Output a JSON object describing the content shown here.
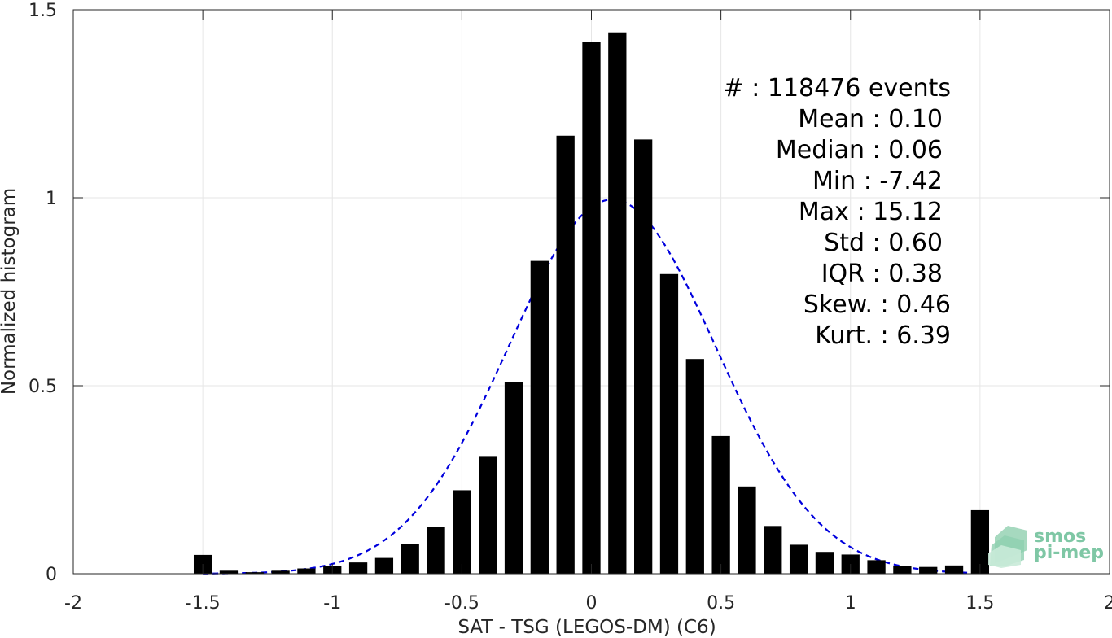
{
  "chart_data": {
    "type": "bar",
    "xlabel": "SAT - TSG (LEGOS-DM) (C6)",
    "ylabel": "Normalized histogram",
    "xlim": [
      -2,
      2
    ],
    "ylim": [
      0,
      1.5
    ],
    "grid": true,
    "x_ticks": [
      {
        "value": -2,
        "label": "-2"
      },
      {
        "value": -1.5,
        "label": "-1.5"
      },
      {
        "value": -1,
        "label": "-1"
      },
      {
        "value": -0.5,
        "label": "-0.5"
      },
      {
        "value": 0,
        "label": "0"
      },
      {
        "value": 0.5,
        "label": "0.5"
      },
      {
        "value": 1,
        "label": "1"
      },
      {
        "value": 1.5,
        "label": "1.5"
      },
      {
        "value": 2,
        "label": "2"
      }
    ],
    "y_ticks": [
      {
        "value": 0,
        "label": "0"
      },
      {
        "value": 0.5,
        "label": "0.5"
      },
      {
        "value": 1,
        "label": "1"
      },
      {
        "value": 1.5,
        "label": "1.5"
      }
    ],
    "bins": {
      "x": [
        -1.5,
        -1.4,
        -1.3,
        -1.2,
        -1.1,
        -1.0,
        -0.9,
        -0.8,
        -0.7,
        -0.6,
        -0.5,
        -0.4,
        -0.3,
        -0.2,
        -0.1,
        0.0,
        0.1,
        0.2,
        0.3,
        0.4,
        0.5,
        0.6,
        0.7,
        0.8,
        0.9,
        1.0,
        1.1,
        1.2,
        1.3,
        1.4,
        1.5
      ],
      "values": [
        0.05,
        0.008,
        0.004,
        0.008,
        0.014,
        0.02,
        0.03,
        0.042,
        0.078,
        0.125,
        0.222,
        0.313,
        0.51,
        0.832,
        1.165,
        1.414,
        1.44,
        1.155,
        0.797,
        0.571,
        0.366,
        0.232,
        0.127,
        0.077,
        0.058,
        0.051,
        0.036,
        0.02,
        0.018,
        0.022,
        0.169
      ],
      "width": 0.07,
      "color": "#000000"
    },
    "fit_curve": {
      "style": "dashed",
      "color": "#0000dd",
      "mean": 0.08,
      "std": 0.4,
      "peak": 0.995,
      "x_range": [
        -1.5,
        1.5
      ]
    },
    "annotations": [
      {
        "label": "#  :",
        "value": "118476 events"
      },
      {
        "label": "Mean :",
        "value": "0.10"
      },
      {
        "label": "Median :",
        "value": "0.06"
      },
      {
        "label": "Min :",
        "value": "-7.42"
      },
      {
        "label": "Max :",
        "value": "15.12"
      },
      {
        "label": "Std :",
        "value": "0.60"
      },
      {
        "label": "IQR :",
        "value": "0.38"
      },
      {
        "label": "Skew. :",
        "value": "0.46"
      },
      {
        "label": "Kurt. :",
        "value": "6.39"
      }
    ]
  },
  "logo": {
    "line1": "smos",
    "line2": "pi-mep",
    "color": "#7fc7a5"
  }
}
